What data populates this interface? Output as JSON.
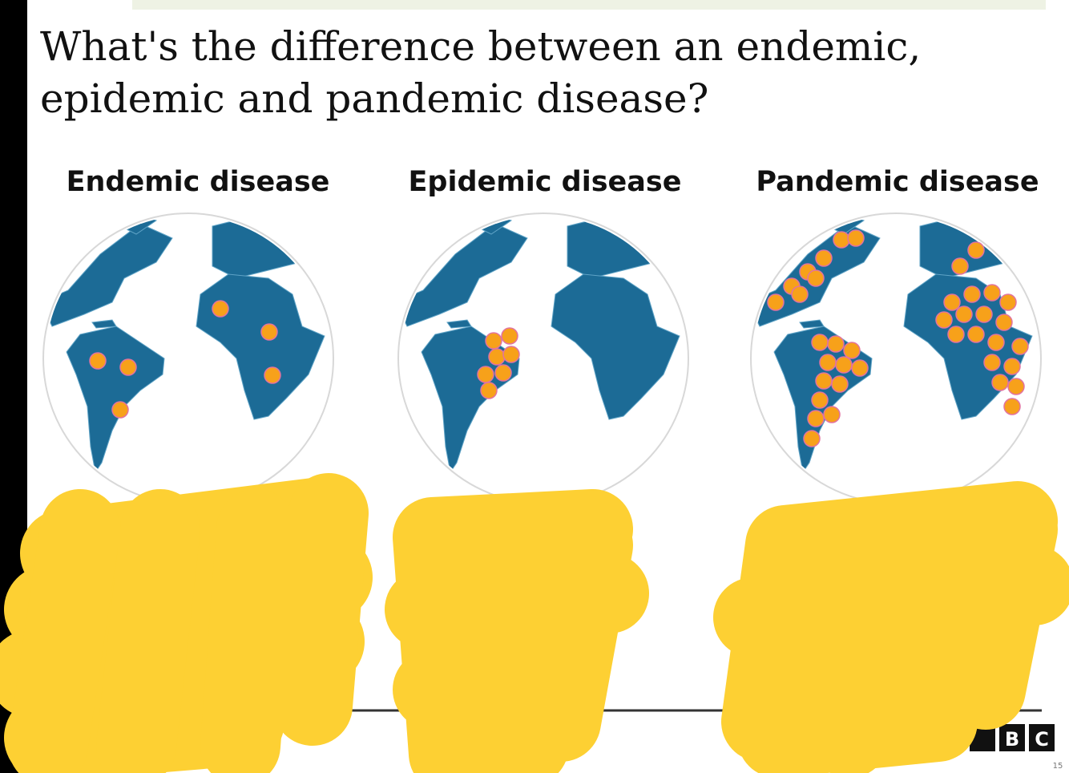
{
  "title": [
    "What's the difference between an endemic,",
    "epidemic and pandemic disease?"
  ],
  "panels": [
    {
      "heading": "Endemic disease"
    },
    {
      "heading": "Epidemic disease"
    },
    {
      "heading": "Pandemic disease"
    }
  ],
  "logo": [
    "B",
    "C"
  ],
  "page_number": "15"
}
